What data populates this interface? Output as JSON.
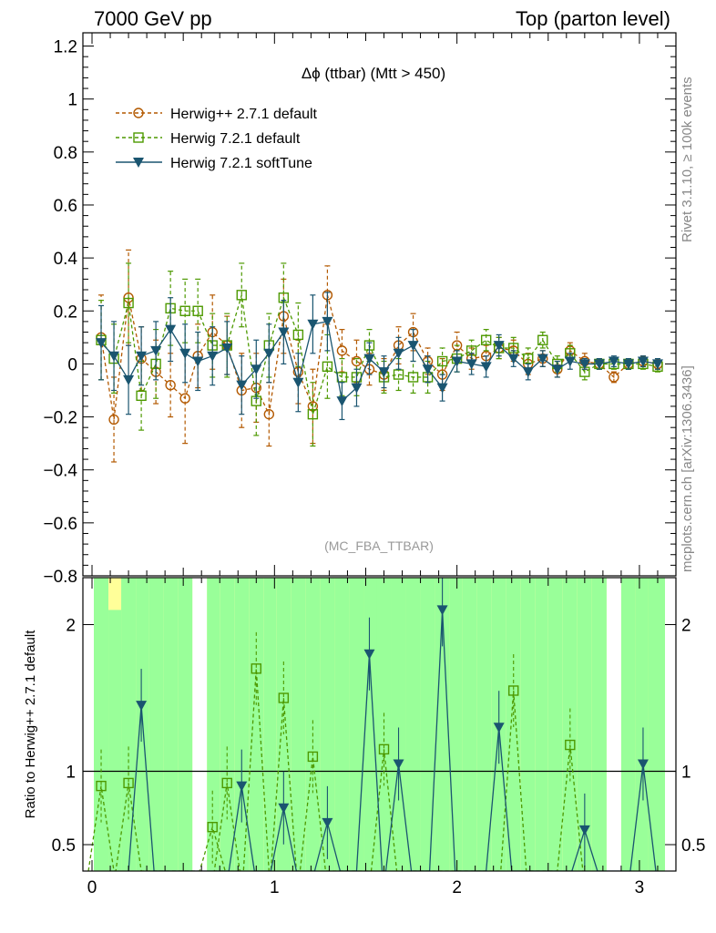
{
  "header": {
    "left": "7000 GeV pp",
    "right": "Top (parton level)"
  },
  "side_labels": {
    "rivet": "Rivet 3.1.10, ≥ 100k events",
    "mcplots": "mcplots.cern.ch [arXiv:1306.3436]"
  },
  "chart_data": [
    {
      "type": "scatter",
      "title": "Δϕ (ttbar) (Mtt > 450)",
      "watermark": "(MC_FBA_TTBAR)",
      "xlim": [
        -0.05,
        3.2
      ],
      "ylim": [
        -0.8,
        1.25
      ],
      "yticks": [
        -0.8,
        -0.6,
        -0.4,
        -0.2,
        0,
        0.2,
        0.4,
        0.6,
        0.8,
        1,
        1.2
      ],
      "ytick_labels": [
        "−0.8",
        "−0.6",
        "−0.4",
        "−0.2",
        "0",
        "0.2",
        "0.4",
        "0.6",
        "0.8",
        "1",
        "1.2"
      ],
      "legend_position": "top-left",
      "series": [
        {
          "name": "Herwig++ 2.7.1 default",
          "color": "#b35900",
          "marker": "circle",
          "line": "dashed",
          "x": [
            0.05,
            0.12,
            0.2,
            0.27,
            0.35,
            0.43,
            0.51,
            0.58,
            0.66,
            0.74,
            0.82,
            0.9,
            0.97,
            1.05,
            1.13,
            1.21,
            1.29,
            1.37,
            1.45,
            1.52,
            1.6,
            1.68,
            1.76,
            1.84,
            1.92,
            2.0,
            2.08,
            2.16,
            2.23,
            2.31,
            2.39,
            2.47,
            2.55,
            2.62,
            2.7,
            2.78,
            2.86,
            2.94,
            3.02,
            3.1
          ],
          "y": [
            0.1,
            -0.21,
            0.25,
            0.02,
            -0.03,
            -0.08,
            -0.13,
            0.03,
            0.12,
            0.07,
            -0.1,
            -0.09,
            -0.19,
            0.18,
            -0.03,
            -0.16,
            0.26,
            0.05,
            0.01,
            -0.02,
            -0.04,
            0.07,
            0.12,
            0.01,
            -0.04,
            0.07,
            0.02,
            0.03,
            0.06,
            0.05,
            0.0,
            0.02,
            -0.02,
            0.05,
            0.01,
            0.0,
            -0.05,
            0.0,
            0.01,
            0.0
          ],
          "err": [
            0.16,
            0.16,
            0.18,
            0.12,
            0.12,
            0.12,
            0.17,
            0.12,
            0.14,
            0.11,
            0.14,
            0.13,
            0.12,
            0.14,
            0.12,
            0.14,
            0.11,
            0.08,
            0.08,
            0.06,
            0.06,
            0.07,
            0.07,
            0.05,
            0.06,
            0.05,
            0.04,
            0.04,
            0.04,
            0.04,
            0.04,
            0.03,
            0.03,
            0.03,
            0.03,
            0.02,
            0.02,
            0.02,
            0.02,
            0.02
          ]
        },
        {
          "name": "Herwig 7.2.1 default",
          "color": "#4d9900",
          "marker": "square",
          "line": "dashed",
          "x": [
            0.05,
            0.12,
            0.2,
            0.27,
            0.35,
            0.43,
            0.51,
            0.58,
            0.66,
            0.74,
            0.82,
            0.9,
            0.97,
            1.05,
            1.13,
            1.21,
            1.29,
            1.37,
            1.45,
            1.52,
            1.6,
            1.68,
            1.76,
            1.84,
            1.92,
            2.0,
            2.08,
            2.16,
            2.23,
            2.31,
            2.39,
            2.47,
            2.55,
            2.62,
            2.7,
            2.78,
            2.86,
            2.94,
            3.02,
            3.1
          ],
          "y": [
            0.09,
            0.02,
            0.23,
            -0.12,
            0.0,
            0.21,
            0.2,
            0.2,
            0.07,
            0.07,
            0.26,
            -0.14,
            0.07,
            0.25,
            0.11,
            -0.19,
            -0.01,
            -0.05,
            -0.05,
            0.07,
            -0.05,
            -0.04,
            -0.05,
            -0.05,
            0.01,
            0.02,
            0.05,
            0.09,
            0.06,
            0.06,
            0.02,
            0.09,
            0.0,
            0.04,
            -0.03,
            0.0,
            0.0,
            0.0,
            0.0,
            -0.01
          ],
          "err": [
            0.15,
            0.13,
            0.15,
            0.13,
            0.13,
            0.14,
            0.12,
            0.12,
            0.12,
            0.12,
            0.12,
            0.13,
            0.12,
            0.13,
            0.12,
            0.12,
            0.12,
            0.07,
            0.07,
            0.06,
            0.06,
            0.06,
            0.06,
            0.06,
            0.05,
            0.05,
            0.04,
            0.04,
            0.04,
            0.04,
            0.04,
            0.03,
            0.03,
            0.03,
            0.03,
            0.02,
            0.02,
            0.02,
            0.02,
            0.02
          ]
        },
        {
          "name": "Herwig 7.2.1 softTune",
          "color": "#1a5570",
          "marker": "triangle-down",
          "line": "solid",
          "x": [
            0.05,
            0.12,
            0.2,
            0.27,
            0.35,
            0.43,
            0.51,
            0.58,
            0.66,
            0.74,
            0.82,
            0.9,
            0.97,
            1.05,
            1.13,
            1.21,
            1.29,
            1.37,
            1.45,
            1.52,
            1.6,
            1.68,
            1.76,
            1.84,
            1.92,
            2.0,
            2.08,
            2.16,
            2.23,
            2.31,
            2.39,
            2.47,
            2.55,
            2.62,
            2.7,
            2.78,
            2.86,
            2.94,
            3.02,
            3.1
          ],
          "y": [
            0.08,
            0.03,
            -0.06,
            0.03,
            0.05,
            0.13,
            0.04,
            0.01,
            0.03,
            0.06,
            -0.08,
            -0.02,
            0.04,
            0.12,
            -0.07,
            0.15,
            0.16,
            -0.14,
            -0.09,
            0.02,
            -0.03,
            0.04,
            0.07,
            -0.02,
            -0.09,
            0.01,
            0.0,
            -0.01,
            0.07,
            0.02,
            -0.03,
            0.02,
            -0.02,
            0.01,
            0.0,
            0.0,
            0.01,
            0.0,
            0.01,
            0.0
          ],
          "err": [
            0.14,
            0.13,
            0.13,
            0.11,
            0.11,
            0.12,
            0.11,
            0.11,
            0.11,
            0.1,
            0.11,
            0.11,
            0.11,
            0.12,
            0.11,
            0.11,
            0.11,
            0.07,
            0.07,
            0.06,
            0.06,
            0.06,
            0.06,
            0.05,
            0.05,
            0.04,
            0.04,
            0.04,
            0.04,
            0.03,
            0.03,
            0.03,
            0.03,
            0.03,
            0.02,
            0.02,
            0.02,
            0.02,
            0.02,
            0.02
          ]
        }
      ]
    },
    {
      "type": "scatter",
      "ylabel": "Ratio to Herwig++ 2.7.1 default",
      "xlim": [
        -0.05,
        3.2
      ],
      "ylim": [
        0.32,
        2.32
      ],
      "reference_line": 1,
      "xticks": [
        0,
        1,
        2,
        3
      ],
      "xtick_labels": [
        "0",
        "1",
        "2",
        "3"
      ],
      "yticks": [
        0.5,
        1,
        2
      ],
      "ytick_labels": [
        "0.5",
        "1",
        "2"
      ],
      "uncertainty_bands": {
        "inner_color": "#99ff99",
        "outer_color": "#ffff99",
        "bin_edges": [
          0.01,
          0.09,
          0.16,
          0.24,
          0.31,
          0.39,
          0.47,
          0.55,
          0.63,
          0.7,
          0.78,
          0.86,
          0.94,
          1.01,
          1.09,
          1.17,
          1.25,
          1.33,
          1.41,
          1.49,
          1.56,
          1.64,
          1.72,
          1.8,
          1.88,
          1.96,
          2.03,
          2.11,
          2.19,
          2.27,
          2.35,
          2.43,
          2.5,
          2.58,
          2.66,
          2.74,
          2.82,
          2.9,
          2.98,
          3.05,
          3.14
        ],
        "inner_top": [
          2.32,
          2.1,
          2.32,
          2.32,
          2.32,
          2.32,
          2.32,
          0.32,
          2.32,
          2.32,
          2.32,
          2.32,
          2.32,
          2.32,
          2.32,
          2.32,
          2.32,
          2.32,
          2.32,
          2.32,
          2.32,
          2.32,
          2.32,
          2.32,
          2.32,
          2.32,
          2.32,
          2.32,
          2.32,
          2.32,
          2.32,
          2.32,
          2.32,
          2.32,
          2.32,
          2.32,
          0.32,
          2.32,
          2.32,
          2.32
        ],
        "outer_top": [
          2.32,
          2.32,
          2.32,
          2.32,
          2.32,
          2.32,
          2.32,
          0.32,
          2.32,
          2.32,
          2.32,
          2.32,
          2.32,
          2.32,
          2.32,
          2.32,
          2.32,
          2.32,
          2.32,
          2.32,
          2.32,
          2.32,
          2.32,
          2.32,
          2.32,
          2.32,
          2.32,
          2.32,
          2.32,
          2.32,
          2.32,
          2.32,
          2.32,
          2.32,
          2.32,
          2.32,
          0.32,
          2.32,
          2.32,
          2.32
        ]
      },
      "series": [
        {
          "name": "Herwig 7.2.1 default",
          "color": "#4d9900",
          "marker": "square",
          "line": "dashed",
          "x": [
            0.05,
            0.2,
            0.66,
            0.74,
            0.9,
            1.05,
            1.21,
            1.6,
            2.31,
            2.62
          ],
          "y": [
            0.9,
            0.92,
            0.62,
            0.92,
            1.7,
            1.5,
            1.1,
            1.15,
            1.55,
            1.18
          ]
        },
        {
          "name": "Herwig 7.2.1 softTune",
          "color": "#1a5570",
          "marker": "triangle-down",
          "line": "solid",
          "x": [
            0.27,
            0.82,
            1.05,
            1.29,
            1.52,
            1.68,
            1.92,
            2.23,
            2.7,
            3.02
          ],
          "y": [
            1.45,
            0.9,
            0.75,
            0.65,
            1.8,
            1.05,
            2.1,
            1.3,
            0.6,
            1.05
          ]
        }
      ]
    }
  ]
}
